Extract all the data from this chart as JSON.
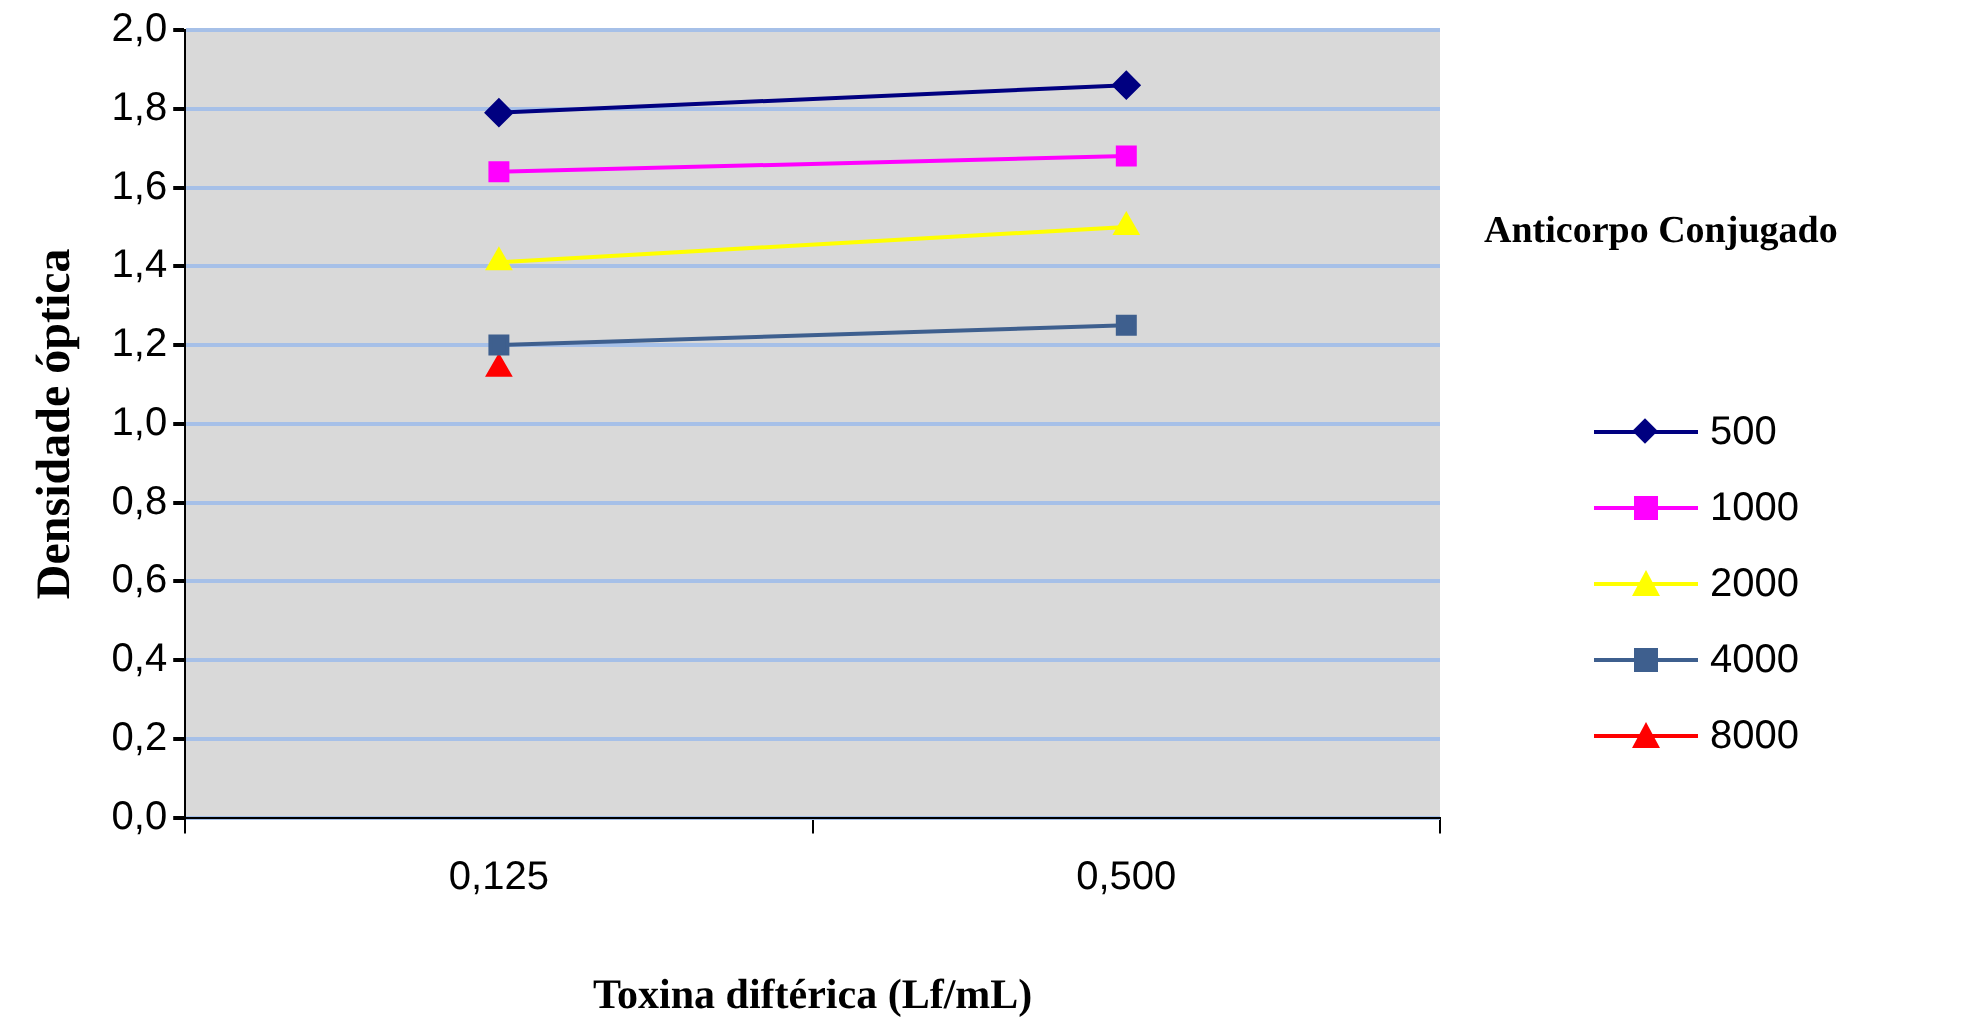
{
  "chart_data": {
    "type": "line",
    "xlabel": "Toxina diftérica (Lf/mL)",
    "ylabel": "Densidade óptica",
    "legend_title": "Anticorpo Conjugado",
    "legend": "right",
    "grid": "y",
    "categories": [
      "0,125",
      "0,500"
    ],
    "ylim": [
      0,
      2
    ],
    "yticks": [
      {
        "value": 0,
        "label": "0,0"
      },
      {
        "value": 0.2,
        "label": "0,2"
      },
      {
        "value": 0.4,
        "label": "0,4"
      },
      {
        "value": 0.6,
        "label": "0,6"
      },
      {
        "value": 0.8,
        "label": "0,8"
      },
      {
        "value": 1,
        "label": "1,0"
      },
      {
        "value": 1.2,
        "label": "1,2"
      },
      {
        "value": 1.4,
        "label": "1,4"
      },
      {
        "value": 1.6,
        "label": "1,6"
      },
      {
        "value": 1.8,
        "label": "1,8"
      },
      {
        "value": 2,
        "label": "2,0"
      }
    ],
    "series": [
      {
        "name": "500",
        "color": "#000080",
        "marker": "diamond",
        "values": [
          1.79,
          1.86
        ]
      },
      {
        "name": "1000",
        "color": "#ff00ff",
        "marker": "square",
        "values": [
          1.64,
          1.68
        ]
      },
      {
        "name": "2000",
        "color": "#ffff00",
        "marker": "triangle",
        "values": [
          1.41,
          1.5
        ]
      },
      {
        "name": "4000",
        "color": "#3e5f8e",
        "marker": "square",
        "values": [
          1.2,
          1.25
        ]
      },
      {
        "name": "8000",
        "color": "#ff0000",
        "marker": "triangle",
        "values": [
          1.14,
          null
        ]
      }
    ]
  }
}
